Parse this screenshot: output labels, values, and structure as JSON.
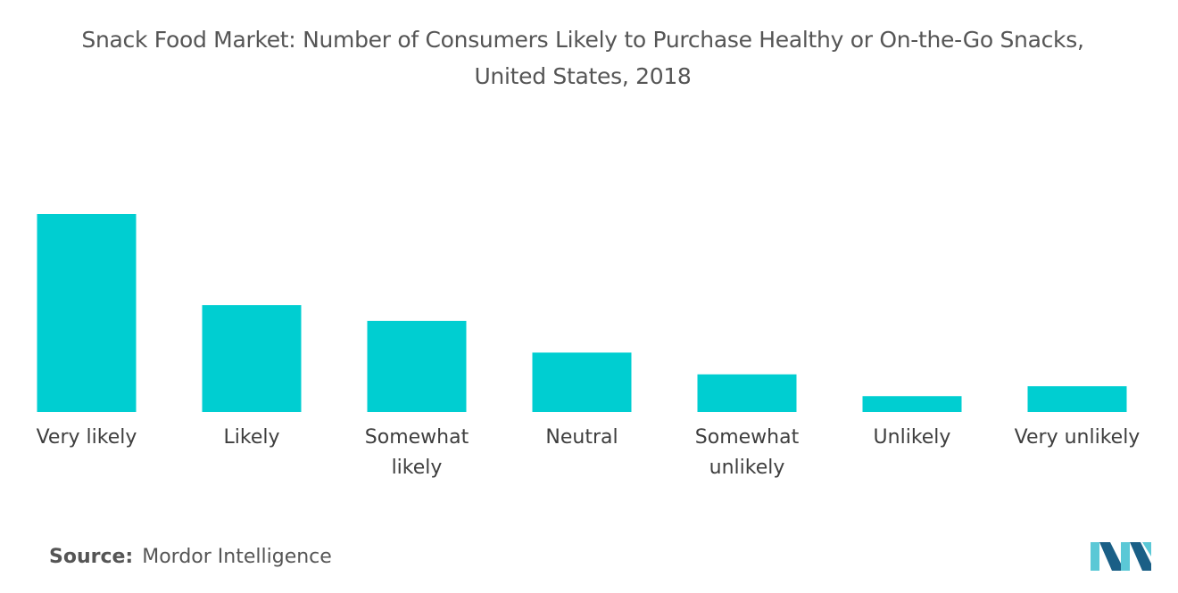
{
  "header": {
    "title_line1": "Snack Food Market: Number of Consumers Likely to Purchase Healthy or On-the-Go Snacks,",
    "title_line2": "United States, 2018"
  },
  "footer": {
    "source_label": "Source:",
    "source_value": "Mordor Intelligence",
    "logo_icon": "mordor-intelligence-logo-icon"
  },
  "colors": {
    "bar": "#00CED1",
    "logo_light": "#5bc8d6",
    "logo_dark": "#1a5f86"
  },
  "chart_data": {
    "type": "bar",
    "title": "Snack Food Market: Number of Consumers Likely to Purchase Healthy or On-the-Go Snacks, United States, 2018",
    "categories": [
      "Very likely",
      "Likely",
      "Somewhat likely",
      "Neutral",
      "Somewhat unlikely",
      "Unlikely",
      "Very unlikely"
    ],
    "category_lines": [
      [
        "Very likely"
      ],
      [
        "Likely"
      ],
      [
        "Somewhat",
        "likely"
      ],
      [
        "Neutral"
      ],
      [
        "Somewhat",
        "unlikely"
      ],
      [
        "Unlikely"
      ],
      [
        "Very unlikely"
      ]
    ],
    "values": [
      100,
      54,
      46,
      30,
      19,
      8,
      13
    ],
    "ylim": [
      0,
      100
    ],
    "xlabel": "",
    "ylabel": "",
    "grid": false,
    "axes_visible": false,
    "value_labels": false
  }
}
